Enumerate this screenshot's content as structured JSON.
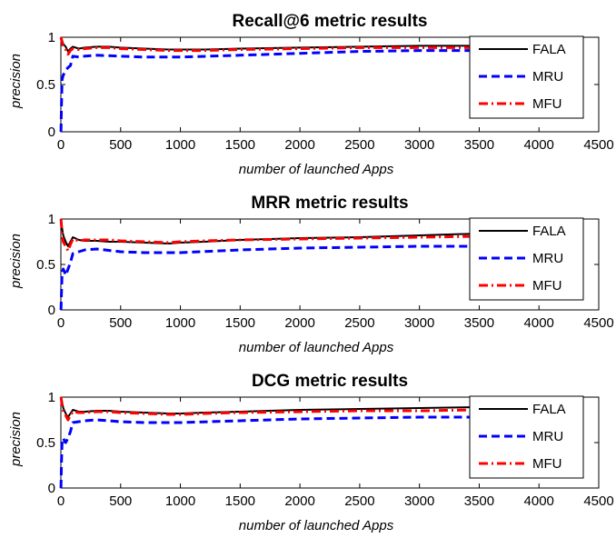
{
  "colors": {
    "FALA": "#000000",
    "MRU": "#0000ff",
    "MFU": "#ff0000"
  },
  "chart_data": [
    {
      "type": "line",
      "title": "Recall@6 metric results",
      "xlabel": "number of launched Apps",
      "ylabel": "precision",
      "xlim": [
        0,
        4500
      ],
      "ylim": [
        0,
        1
      ],
      "xticks": [
        "0",
        "500",
        "1000",
        "1500",
        "2000",
        "2500",
        "3000",
        "3500",
        "4000",
        "4500"
      ],
      "yticks": [
        "0",
        "0.5",
        "1"
      ],
      "legend_position": "right",
      "grid": false,
      "series": [
        {
          "name": "FALA",
          "color": "#000000",
          "style": "solid",
          "x": [
            1,
            10,
            20,
            40,
            60,
            80,
            100,
            150,
            200,
            300,
            400,
            500,
            700,
            900,
            1000,
            1200,
            1500,
            2000,
            2500,
            3000,
            3500
          ],
          "y": [
            1.0,
            0.97,
            0.93,
            0.9,
            0.85,
            0.88,
            0.9,
            0.88,
            0.89,
            0.9,
            0.9,
            0.89,
            0.88,
            0.87,
            0.87,
            0.87,
            0.88,
            0.89,
            0.9,
            0.91,
            0.91
          ]
        },
        {
          "name": "MRU",
          "color": "#0000ff",
          "style": "dashed",
          "x": [
            1,
            5,
            10,
            20,
            30,
            40,
            60,
            80,
            100,
            150,
            200,
            300,
            500,
            700,
            1000,
            1500,
            2000,
            2500,
            3000,
            3500
          ],
          "y": [
            0.0,
            0.3,
            0.55,
            0.6,
            0.62,
            0.65,
            0.68,
            0.7,
            0.8,
            0.79,
            0.8,
            0.81,
            0.8,
            0.79,
            0.79,
            0.81,
            0.83,
            0.85,
            0.86,
            0.86
          ]
        },
        {
          "name": "MFU",
          "color": "#ff0000",
          "style": "dashdot",
          "x": [
            1,
            10,
            20,
            40,
            60,
            80,
            100,
            150,
            200,
            300,
            400,
            500,
            700,
            900,
            1000,
            1200,
            1500,
            2000,
            2500,
            3000,
            3500
          ],
          "y": [
            1.0,
            0.95,
            0.9,
            0.87,
            0.82,
            0.86,
            0.88,
            0.87,
            0.88,
            0.89,
            0.89,
            0.88,
            0.87,
            0.86,
            0.86,
            0.86,
            0.87,
            0.88,
            0.89,
            0.89,
            0.89
          ]
        }
      ]
    },
    {
      "type": "line",
      "title": "MRR metric results",
      "xlabel": "number of launched Apps",
      "ylabel": "precision",
      "xlim": [
        0,
        4500
      ],
      "ylim": [
        0,
        1
      ],
      "xticks": [
        "0",
        "500",
        "1000",
        "1500",
        "2000",
        "2500",
        "3000",
        "3500",
        "4000",
        "4500"
      ],
      "yticks": [
        "0",
        "0.5",
        "1"
      ],
      "legend_position": "right",
      "grid": false,
      "series": [
        {
          "name": "FALA",
          "color": "#000000",
          "style": "solid",
          "x": [
            1,
            10,
            20,
            40,
            60,
            80,
            100,
            150,
            200,
            300,
            400,
            500,
            700,
            900,
            1000,
            1200,
            1500,
            2000,
            2500,
            3000,
            3500
          ],
          "y": [
            1.0,
            0.9,
            0.82,
            0.75,
            0.7,
            0.75,
            0.8,
            0.77,
            0.76,
            0.76,
            0.75,
            0.75,
            0.74,
            0.73,
            0.74,
            0.75,
            0.77,
            0.79,
            0.8,
            0.82,
            0.84
          ]
        },
        {
          "name": "MRU",
          "color": "#0000ff",
          "style": "dashed",
          "x": [
            1,
            5,
            10,
            20,
            30,
            40,
            60,
            80,
            100,
            150,
            200,
            300,
            500,
            700,
            1000,
            1500,
            2000,
            2500,
            3000,
            3500
          ],
          "y": [
            0.0,
            0.2,
            0.4,
            0.45,
            0.42,
            0.38,
            0.45,
            0.52,
            0.62,
            0.64,
            0.66,
            0.67,
            0.64,
            0.63,
            0.63,
            0.66,
            0.68,
            0.69,
            0.7,
            0.7
          ]
        },
        {
          "name": "MFU",
          "color": "#ff0000",
          "style": "dashdot",
          "x": [
            1,
            10,
            20,
            40,
            60,
            80,
            100,
            150,
            200,
            300,
            400,
            500,
            700,
            900,
            1000,
            1200,
            1500,
            2000,
            2500,
            3000,
            3500
          ],
          "y": [
            1.0,
            0.85,
            0.75,
            0.7,
            0.65,
            0.72,
            0.78,
            0.76,
            0.77,
            0.77,
            0.77,
            0.76,
            0.75,
            0.74,
            0.75,
            0.76,
            0.77,
            0.78,
            0.79,
            0.8,
            0.81
          ]
        }
      ]
    },
    {
      "type": "line",
      "title": "DCG metric results",
      "xlabel": "number of launched Apps",
      "ylabel": "precision",
      "xlim": [
        0,
        4500
      ],
      "ylim": [
        0,
        1
      ],
      "xticks": [
        "0",
        "500",
        "1000",
        "1500",
        "2000",
        "2500",
        "3000",
        "3500",
        "4000",
        "4500"
      ],
      "yticks": [
        "0",
        "0.5",
        "1"
      ],
      "legend_position": "right",
      "grid": false,
      "series": [
        {
          "name": "FALA",
          "color": "#000000",
          "style": "solid",
          "x": [
            1,
            10,
            20,
            40,
            60,
            80,
            100,
            150,
            200,
            300,
            400,
            500,
            700,
            900,
            1000,
            1200,
            1500,
            2000,
            2500,
            3000,
            3500
          ],
          "y": [
            1.0,
            0.95,
            0.88,
            0.82,
            0.78,
            0.82,
            0.86,
            0.84,
            0.84,
            0.85,
            0.85,
            0.84,
            0.83,
            0.82,
            0.82,
            0.83,
            0.84,
            0.86,
            0.87,
            0.88,
            0.89
          ]
        },
        {
          "name": "MRU",
          "color": "#0000ff",
          "style": "dashed",
          "x": [
            1,
            5,
            10,
            20,
            30,
            40,
            60,
            80,
            100,
            150,
            200,
            300,
            500,
            700,
            1000,
            1500,
            2000,
            2500,
            3000,
            3500
          ],
          "y": [
            0.0,
            0.3,
            0.5,
            0.55,
            0.52,
            0.5,
            0.55,
            0.62,
            0.72,
            0.73,
            0.74,
            0.75,
            0.73,
            0.72,
            0.72,
            0.74,
            0.76,
            0.77,
            0.78,
            0.78
          ]
        },
        {
          "name": "MFU",
          "color": "#ff0000",
          "style": "dashdot",
          "x": [
            1,
            10,
            20,
            40,
            60,
            80,
            100,
            150,
            200,
            300,
            400,
            500,
            700,
            900,
            1000,
            1200,
            1500,
            2000,
            2500,
            3000,
            3500
          ],
          "y": [
            1.0,
            0.92,
            0.85,
            0.8,
            0.75,
            0.8,
            0.84,
            0.83,
            0.83,
            0.84,
            0.84,
            0.83,
            0.82,
            0.81,
            0.81,
            0.82,
            0.83,
            0.84,
            0.85,
            0.85,
            0.86
          ]
        }
      ]
    }
  ]
}
